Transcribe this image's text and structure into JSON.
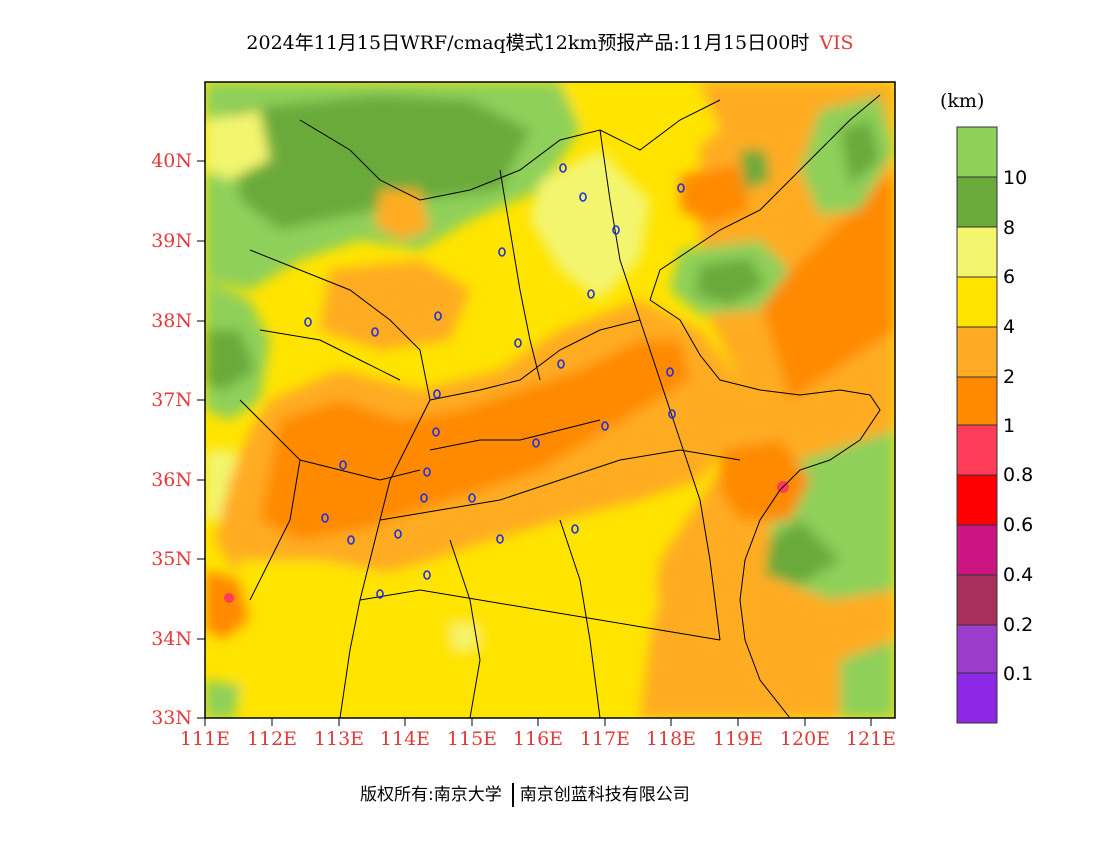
{
  "title": {
    "main": "2024年11月15日WRF/cmaq模式12km预报产品:11月15日00时",
    "variable": "VIS"
  },
  "lat_labels": [
    "40N",
    "39N",
    "38N",
    "37N",
    "36N",
    "35N",
    "34N",
    "33N"
  ],
  "lon_labels": [
    "111E",
    "112E",
    "113E",
    "114E",
    "115E",
    "116E",
    "117E",
    "118E",
    "119E",
    "120E",
    "121E"
  ],
  "colorbar": {
    "units": "(km)",
    "labels": [
      "10",
      "8",
      "6",
      "4",
      "2",
      "1",
      "0.8",
      "0.6",
      "0.4",
      "0.2",
      "0.1"
    ],
    "colors": [
      "#8fd05a",
      "#6aaa3a",
      "#f3f56e",
      "#ffe400",
      "#ffac24",
      "#ff8a00",
      "#ff3c5a",
      "#ff0000",
      "#cc1482",
      "#a8305a",
      "#9a3ccc",
      "#8c28e6"
    ]
  },
  "copyright": {
    "left": "版权所有:南京大学",
    "right": "南京创蓝科技有限公司"
  }
}
